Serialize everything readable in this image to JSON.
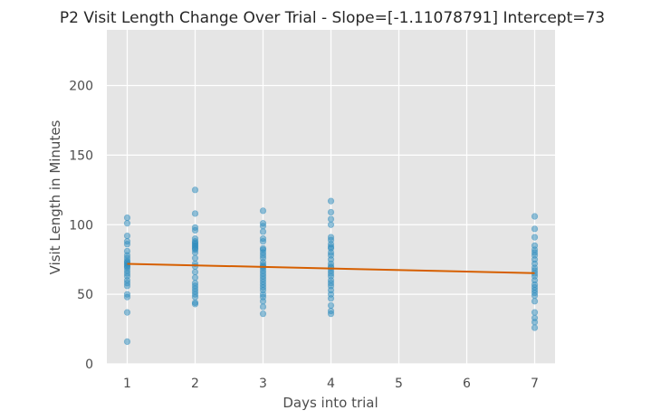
{
  "chart_data": {
    "type": "scatter",
    "title": "P2 Visit Length Change Over Trial - Slope=[-1.11078791] Intercept=73",
    "xlabel": "Days into trial",
    "ylabel": "Visit Length in Minutes",
    "xlim": [
      0.7,
      7.3
    ],
    "ylim": [
      0,
      240
    ],
    "x_ticks": [
      1,
      2,
      3,
      4,
      5,
      6,
      7
    ],
    "y_ticks": [
      0,
      50,
      100,
      150,
      200
    ],
    "grid": true,
    "background": "#e5e5e5",
    "point_color": "#2b8cbe",
    "line_color": "#d65f00",
    "series": [
      {
        "points": [
          [
            1,
            105
          ],
          [
            1,
            101
          ],
          [
            1,
            92
          ],
          [
            1,
            88
          ],
          [
            1,
            86
          ],
          [
            1,
            81
          ],
          [
            1,
            78
          ],
          [
            1,
            76
          ],
          [
            1,
            74
          ],
          [
            1,
            73
          ],
          [
            1,
            72
          ],
          [
            1,
            71
          ],
          [
            1,
            70
          ],
          [
            1,
            69
          ],
          [
            1,
            67
          ],
          [
            1,
            65
          ],
          [
            1,
            63
          ],
          [
            1,
            60
          ],
          [
            1,
            58
          ],
          [
            1,
            56
          ],
          [
            1,
            50
          ],
          [
            1,
            48
          ],
          [
            1,
            37
          ],
          [
            1,
            16
          ],
          [
            2,
            125
          ],
          [
            2,
            108
          ],
          [
            2,
            98
          ],
          [
            2,
            96
          ],
          [
            2,
            90
          ],
          [
            2,
            88
          ],
          [
            2,
            87
          ],
          [
            2,
            86
          ],
          [
            2,
            85
          ],
          [
            2,
            84
          ],
          [
            2,
            83
          ],
          [
            2,
            82
          ],
          [
            2,
            80
          ],
          [
            2,
            76
          ],
          [
            2,
            72
          ],
          [
            2,
            70
          ],
          [
            2,
            66
          ],
          [
            2,
            62
          ],
          [
            2,
            58
          ],
          [
            2,
            56
          ],
          [
            2,
            54
          ],
          [
            2,
            52
          ],
          [
            2,
            50
          ],
          [
            2,
            48
          ],
          [
            2,
            44
          ],
          [
            2,
            43
          ],
          [
            3,
            110
          ],
          [
            3,
            101
          ],
          [
            3,
            99
          ],
          [
            3,
            95
          ],
          [
            3,
            90
          ],
          [
            3,
            88
          ],
          [
            3,
            83
          ],
          [
            3,
            82
          ],
          [
            3,
            80
          ],
          [
            3,
            78
          ],
          [
            3,
            76
          ],
          [
            3,
            73
          ],
          [
            3,
            71
          ],
          [
            3,
            70
          ],
          [
            3,
            69
          ],
          [
            3,
            67
          ],
          [
            3,
            65
          ],
          [
            3,
            63
          ],
          [
            3,
            61
          ],
          [
            3,
            59
          ],
          [
            3,
            57
          ],
          [
            3,
            55
          ],
          [
            3,
            53
          ],
          [
            3,
            50
          ],
          [
            3,
            48
          ],
          [
            3,
            45
          ],
          [
            3,
            41
          ],
          [
            3,
            36
          ],
          [
            4,
            117
          ],
          [
            4,
            109
          ],
          [
            4,
            104
          ],
          [
            4,
            100
          ],
          [
            4,
            91
          ],
          [
            4,
            89
          ],
          [
            4,
            86
          ],
          [
            4,
            84
          ],
          [
            4,
            83
          ],
          [
            4,
            80
          ],
          [
            4,
            78
          ],
          [
            4,
            75
          ],
          [
            4,
            72
          ],
          [
            4,
            70
          ],
          [
            4,
            69
          ],
          [
            4,
            67
          ],
          [
            4,
            65
          ],
          [
            4,
            63
          ],
          [
            4,
            60
          ],
          [
            4,
            58
          ],
          [
            4,
            56
          ],
          [
            4,
            53
          ],
          [
            4,
            50
          ],
          [
            4,
            47
          ],
          [
            4,
            42
          ],
          [
            4,
            38
          ],
          [
            4,
            36
          ],
          [
            7,
            106
          ],
          [
            7,
            97
          ],
          [
            7,
            91
          ],
          [
            7,
            85
          ],
          [
            7,
            82
          ],
          [
            7,
            80
          ],
          [
            7,
            78
          ],
          [
            7,
            75
          ],
          [
            7,
            72
          ],
          [
            7,
            69
          ],
          [
            7,
            67
          ],
          [
            7,
            65
          ],
          [
            7,
            63
          ],
          [
            7,
            60
          ],
          [
            7,
            57
          ],
          [
            7,
            55
          ],
          [
            7,
            53
          ],
          [
            7,
            51
          ],
          [
            7,
            49
          ],
          [
            7,
            45
          ],
          [
            7,
            37
          ],
          [
            7,
            33
          ],
          [
            7,
            30
          ],
          [
            7,
            26
          ]
        ]
      }
    ],
    "trend_line": {
      "slope": -1.11078791,
      "intercept": 73,
      "x_range": [
        1,
        7
      ]
    }
  }
}
